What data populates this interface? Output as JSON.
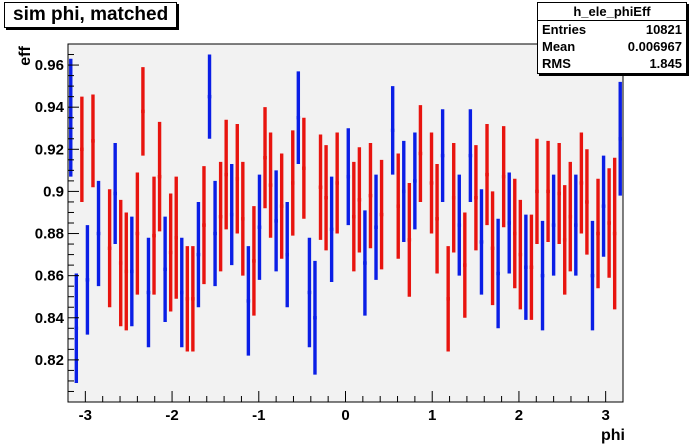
{
  "title": "sim phi, matched",
  "stats": {
    "name": "h_ele_phiEff",
    "rows": [
      {
        "label": "Entries",
        "value": "10821"
      },
      {
        "label": "Mean",
        "value": "0.006967"
      },
      {
        "label": "RMS",
        "value": "1.845"
      }
    ]
  },
  "colors": {
    "blue": "#0a1ee6",
    "red": "#e8140f",
    "frame_bg": "#f2f2f2"
  },
  "chart_data": {
    "type": "scatter",
    "title": "sim phi, matched",
    "xlabel": "phi",
    "ylabel": "eff",
    "xlim": [
      -3.2,
      3.2
    ],
    "ylim": [
      0.8,
      0.97
    ],
    "xticks": [
      -3,
      -2,
      -1,
      0,
      1,
      2,
      3
    ],
    "yticks": [
      0.82,
      0.84,
      0.86,
      0.88,
      0.9,
      0.92,
      0.94,
      0.96
    ],
    "grid": false,
    "legend": "none",
    "bin_width": 0.064,
    "series": [
      {
        "color": "blue",
        "points": [
          {
            "x": -3.168,
            "y": 0.935,
            "err": 0.028
          },
          {
            "x": -3.104,
            "y": 0.835,
            "err": 0.026
          },
          {
            "x": -2.976,
            "y": 0.858,
            "err": 0.026
          },
          {
            "x": -2.848,
            "y": 0.88,
            "err": 0.025
          },
          {
            "x": -2.656,
            "y": 0.899,
            "err": 0.024
          },
          {
            "x": -2.464,
            "y": 0.862,
            "err": 0.026
          },
          {
            "x": -2.272,
            "y": 0.852,
            "err": 0.026
          },
          {
            "x": -2.08,
            "y": 0.863,
            "err": 0.025
          },
          {
            "x": -1.888,
            "y": 0.852,
            "err": 0.026
          },
          {
            "x": -1.696,
            "y": 0.87,
            "err": 0.025
          },
          {
            "x": -1.568,
            "y": 0.945,
            "err": 0.02
          },
          {
            "x": -1.504,
            "y": 0.88,
            "err": 0.025
          },
          {
            "x": -1.312,
            "y": 0.889,
            "err": 0.024
          },
          {
            "x": -1.12,
            "y": 0.848,
            "err": 0.026
          },
          {
            "x": -0.992,
            "y": 0.883,
            "err": 0.025
          },
          {
            "x": -0.8,
            "y": 0.886,
            "err": 0.024
          },
          {
            "x": -0.672,
            "y": 0.87,
            "err": 0.025
          },
          {
            "x": -0.544,
            "y": 0.935,
            "err": 0.022
          },
          {
            "x": -0.416,
            "y": 0.852,
            "err": 0.026
          },
          {
            "x": -0.352,
            "y": 0.84,
            "err": 0.027
          },
          {
            "x": -0.16,
            "y": 0.882,
            "err": 0.025
          },
          {
            "x": 0.032,
            "y": 0.907,
            "err": 0.023
          },
          {
            "x": 0.224,
            "y": 0.866,
            "err": 0.025
          },
          {
            "x": 0.352,
            "y": 0.883,
            "err": 0.025
          },
          {
            "x": 0.544,
            "y": 0.929,
            "err": 0.021
          },
          {
            "x": 0.672,
            "y": 0.9,
            "err": 0.024
          },
          {
            "x": 0.8,
            "y": 0.905,
            "err": 0.023
          },
          {
            "x": 1.12,
            "y": 0.917,
            "err": 0.022
          },
          {
            "x": 1.312,
            "y": 0.884,
            "err": 0.024
          },
          {
            "x": 1.44,
            "y": 0.917,
            "err": 0.022
          },
          {
            "x": 1.568,
            "y": 0.876,
            "err": 0.025
          },
          {
            "x": 1.76,
            "y": 0.861,
            "err": 0.026
          },
          {
            "x": 1.888,
            "y": 0.885,
            "err": 0.024
          },
          {
            "x": 2.08,
            "y": 0.864,
            "err": 0.025
          },
          {
            "x": 2.272,
            "y": 0.86,
            "err": 0.026
          },
          {
            "x": 2.4,
            "y": 0.884,
            "err": 0.024
          },
          {
            "x": 2.656,
            "y": 0.884,
            "err": 0.024
          },
          {
            "x": 2.848,
            "y": 0.86,
            "err": 0.026
          },
          {
            "x": 2.976,
            "y": 0.893,
            "err": 0.024
          },
          {
            "x": 3.168,
            "y": 0.925,
            "err": 0.027
          }
        ]
      },
      {
        "color": "red",
        "points": [
          {
            "x": -3.04,
            "y": 0.92,
            "err": 0.025
          },
          {
            "x": -2.912,
            "y": 0.924,
            "err": 0.022
          },
          {
            "x": -2.72,
            "y": 0.873,
            "err": 0.028
          },
          {
            "x": -2.592,
            "y": 0.866,
            "err": 0.03
          },
          {
            "x": -2.528,
            "y": 0.862,
            "err": 0.028
          },
          {
            "x": -2.4,
            "y": 0.88,
            "err": 0.029
          },
          {
            "x": -2.336,
            "y": 0.938,
            "err": 0.021
          },
          {
            "x": -2.208,
            "y": 0.879,
            "err": 0.028
          },
          {
            "x": -2.144,
            "y": 0.907,
            "err": 0.026
          },
          {
            "x": -2.016,
            "y": 0.871,
            "err": 0.028
          },
          {
            "x": -1.952,
            "y": 0.878,
            "err": 0.029
          },
          {
            "x": -1.824,
            "y": 0.849,
            "err": 0.025
          },
          {
            "x": -1.76,
            "y": 0.849,
            "err": 0.025
          },
          {
            "x": -1.632,
            "y": 0.884,
            "err": 0.028
          },
          {
            "x": -1.44,
            "y": 0.888,
            "err": 0.026
          },
          {
            "x": -1.376,
            "y": 0.908,
            "err": 0.026
          },
          {
            "x": -1.248,
            "y": 0.906,
            "err": 0.026
          },
          {
            "x": -1.184,
            "y": 0.887,
            "err": 0.027
          },
          {
            "x": -1.056,
            "y": 0.867,
            "err": 0.026
          },
          {
            "x": -0.928,
            "y": 0.916,
            "err": 0.024
          },
          {
            "x": -0.864,
            "y": 0.903,
            "err": 0.025
          },
          {
            "x": -0.736,
            "y": 0.893,
            "err": 0.025
          },
          {
            "x": -0.608,
            "y": 0.904,
            "err": 0.025
          },
          {
            "x": -0.48,
            "y": 0.911,
            "err": 0.024
          },
          {
            "x": -0.288,
            "y": 0.902,
            "err": 0.025
          },
          {
            "x": -0.224,
            "y": 0.897,
            "err": 0.025
          },
          {
            "x": -0.096,
            "y": 0.904,
            "err": 0.024
          },
          {
            "x": 0.096,
            "y": 0.888,
            "err": 0.026
          },
          {
            "x": 0.16,
            "y": 0.896,
            "err": 0.025
          },
          {
            "x": 0.288,
            "y": 0.898,
            "err": 0.025
          },
          {
            "x": 0.416,
            "y": 0.889,
            "err": 0.026
          },
          {
            "x": 0.608,
            "y": 0.893,
            "err": 0.025
          },
          {
            "x": 0.736,
            "y": 0.877,
            "err": 0.027
          },
          {
            "x": 0.864,
            "y": 0.918,
            "err": 0.023
          },
          {
            "x": 0.992,
            "y": 0.904,
            "err": 0.024
          },
          {
            "x": 1.056,
            "y": 0.887,
            "err": 0.026
          },
          {
            "x": 1.184,
            "y": 0.849,
            "err": 0.025
          },
          {
            "x": 1.248,
            "y": 0.897,
            "err": 0.026
          },
          {
            "x": 1.376,
            "y": 0.865,
            "err": 0.025
          },
          {
            "x": 1.504,
            "y": 0.897,
            "err": 0.025
          },
          {
            "x": 1.632,
            "y": 0.908,
            "err": 0.024
          },
          {
            "x": 1.696,
            "y": 0.873,
            "err": 0.027
          },
          {
            "x": 1.824,
            "y": 0.907,
            "err": 0.024
          },
          {
            "x": 1.952,
            "y": 0.88,
            "err": 0.026
          },
          {
            "x": 2.016,
            "y": 0.87,
            "err": 0.026
          },
          {
            "x": 2.144,
            "y": 0.864,
            "err": 0.025
          },
          {
            "x": 2.208,
            "y": 0.9,
            "err": 0.025
          },
          {
            "x": 2.336,
            "y": 0.9,
            "err": 0.024
          },
          {
            "x": 2.464,
            "y": 0.899,
            "err": 0.024
          },
          {
            "x": 2.528,
            "y": 0.877,
            "err": 0.026
          },
          {
            "x": 2.592,
            "y": 0.888,
            "err": 0.026
          },
          {
            "x": 2.72,
            "y": 0.904,
            "err": 0.024
          },
          {
            "x": 2.784,
            "y": 0.895,
            "err": 0.025
          },
          {
            "x": 2.912,
            "y": 0.88,
            "err": 0.026
          },
          {
            "x": 3.04,
            "y": 0.885,
            "err": 0.026
          },
          {
            "x": 3.104,
            "y": 0.88,
            "err": 0.036
          }
        ]
      }
    ]
  }
}
